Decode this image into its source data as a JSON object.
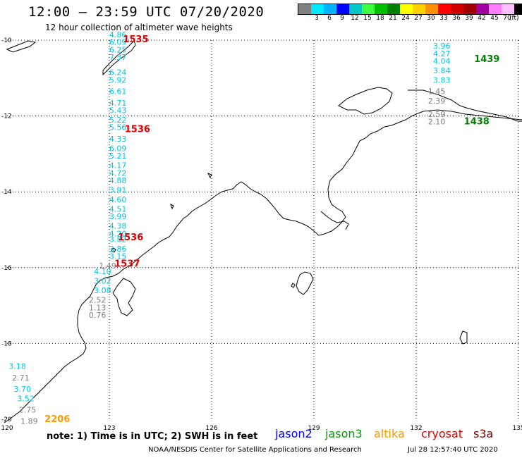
{
  "header": {
    "title": "12:00 – 23:59 UTC 07/20/2020",
    "subtitle": "12 hour collection of altimeter wave heights"
  },
  "legend": {
    "unit": "(ft)",
    "swatches": [
      {
        "color": "#808080",
        "label": ""
      },
      {
        "color": "#00e8ff",
        "label": "3"
      },
      {
        "color": "#00b4ff",
        "label": "6"
      },
      {
        "color": "#0000ff",
        "label": "9"
      },
      {
        "color": "#00c8c8",
        "label": "12"
      },
      {
        "color": "#40ff40",
        "label": "15"
      },
      {
        "color": "#00c000",
        "label": "18"
      },
      {
        "color": "#008000",
        "label": "21"
      },
      {
        "color": "#ffff00",
        "label": "24"
      },
      {
        "color": "#ffd000",
        "label": "27"
      },
      {
        "color": "#ff9000",
        "label": "30"
      },
      {
        "color": "#ff0000",
        "label": "33"
      },
      {
        "color": "#d00000",
        "label": "36"
      },
      {
        "color": "#a00000",
        "label": "39"
      },
      {
        "color": "#a000a0",
        "label": "42"
      },
      {
        "color": "#ff80ff",
        "label": "45"
      },
      {
        "color": "#ffc0ff",
        "label": "70"
      },
      {
        "color": "#000000",
        "label": ""
      }
    ]
  },
  "axes": {
    "lat_labels": [
      "-10",
      "-12",
      "-14",
      "-16",
      "-18",
      "-20"
    ],
    "lon_labels": [
      "120",
      "123",
      "126",
      "129",
      "132",
      "135"
    ]
  },
  "colors": {
    "cyan": "#00c8e0",
    "gray": "#808080",
    "red": "#e00000",
    "green": "#008000",
    "orange": "#ff9900"
  },
  "tracks": [
    {
      "name": "jason2-west",
      "color": "cyan",
      "lon": 123.25,
      "values": [
        {
          "lat": -9.85,
          "v": "4.86"
        },
        {
          "lat": -10.05,
          "v": "6.09"
        },
        {
          "lat": -10.25,
          "v": "6.25"
        },
        {
          "lat": -10.45,
          "v": "7.37"
        },
        {
          "lat": -10.85,
          "v": "6.24"
        },
        {
          "lat": -11.05,
          "v": "5.92"
        },
        {
          "lat": -11.35,
          "v": "6.61"
        },
        {
          "lat": -11.65,
          "v": "4.71"
        },
        {
          "lat": -11.85,
          "v": "5.43"
        },
        {
          "lat": -12.1,
          "v": "5.22"
        },
        {
          "lat": -12.3,
          "v": "5.56"
        },
        {
          "lat": -12.6,
          "v": "4.33"
        },
        {
          "lat": -12.85,
          "v": "6.09"
        },
        {
          "lat": -13.05,
          "v": "5.21"
        },
        {
          "lat": -13.3,
          "v": "4.17"
        },
        {
          "lat": -13.5,
          "v": "4.72"
        },
        {
          "lat": -13.7,
          "v": "4.88"
        },
        {
          "lat": -13.95,
          "v": "3.91"
        },
        {
          "lat": -14.2,
          "v": "4.60"
        },
        {
          "lat": -14.45,
          "v": "4.51"
        },
        {
          "lat": -14.65,
          "v": "3.99"
        },
        {
          "lat": -14.9,
          "v": "4.38"
        },
        {
          "lat": -15.1,
          "v": "4.20"
        },
        {
          "lat": -15.25,
          "v": "3.82"
        },
        {
          "lat": -15.5,
          "v": "3.86"
        },
        {
          "lat": -15.7,
          "v": "3.15"
        }
      ]
    },
    {
      "name": "jason2-west-low",
      "color": "gray",
      "lon": 122.95,
      "values": [
        {
          "lat": -15.95,
          "v": "1.49"
        }
      ]
    },
    {
      "name": "jason2-west-south",
      "color": "cyan",
      "lon": 122.8,
      "values": [
        {
          "lat": -16.1,
          "v": "4.10"
        },
        {
          "lat": -16.35,
          "v": "3.02"
        },
        {
          "lat": -16.6,
          "v": "3.08"
        }
      ]
    },
    {
      "name": "jason2-west-gray",
      "color": "gray",
      "lon": 122.65,
      "values": [
        {
          "lat": -16.85,
          "v": "2.52"
        },
        {
          "lat": -17.05,
          "v": "1.13"
        },
        {
          "lat": -17.25,
          "v": "0.76"
        }
      ]
    },
    {
      "name": "southwest-mixed",
      "color": "mixed",
      "values": [
        {
          "lon": 120.3,
          "lat": -18.6,
          "v": "3.18",
          "c": "cyan"
        },
        {
          "lon": 120.4,
          "lat": -18.9,
          "v": "2.71",
          "c": "gray"
        },
        {
          "lon": 120.45,
          "lat": -19.2,
          "v": "3.70",
          "c": "cyan"
        },
        {
          "lon": 120.55,
          "lat": -19.45,
          "v": "3.52",
          "c": "cyan"
        },
        {
          "lon": 120.6,
          "lat": -19.75,
          "v": "2.75",
          "c": "gray"
        },
        {
          "lon": 120.65,
          "lat": -20.05,
          "v": "1.89",
          "c": "gray"
        }
      ]
    },
    {
      "name": "east-cyan",
      "color": "cyan",
      "lon": 132.75,
      "values": [
        {
          "lat": -10.15,
          "v": "3.96"
        },
        {
          "lat": -10.35,
          "v": "4.27"
        },
        {
          "lat": -10.55,
          "v": "4.04"
        },
        {
          "lat": -10.8,
          "v": "3.84"
        },
        {
          "lat": -11.05,
          "v": "3.83"
        }
      ]
    },
    {
      "name": "east-gray",
      "color": "gray",
      "lon": 132.6,
      "values": [
        {
          "lat": -11.35,
          "v": "1.45"
        },
        {
          "lat": -11.6,
          "v": "2.39"
        },
        {
          "lat": -11.95,
          "v": "2.59"
        },
        {
          "lat": -12.15,
          "v": "2.10"
        }
      ]
    }
  ],
  "time_labels": [
    {
      "lon": 123.4,
      "lat": -9.98,
      "t": "1535",
      "c": "red"
    },
    {
      "lon": 123.45,
      "lat": -12.35,
      "t": "1536",
      "c": "red"
    },
    {
      "lon": 123.25,
      "lat": -15.2,
      "t": "1536",
      "c": "red"
    },
    {
      "lon": 123.15,
      "lat": -15.9,
      "t": "1537",
      "c": "red"
    },
    {
      "lon": 133.7,
      "lat": -10.5,
      "t": "1439",
      "c": "green"
    },
    {
      "lon": 133.4,
      "lat": -12.15,
      "t": "1438",
      "c": "green"
    },
    {
      "lon": 121.1,
      "lat": -20.0,
      "t": "2206",
      "c": "orange"
    }
  ],
  "footer": {
    "note": "note:  1) Time is in UTC;  2) SWH is in feet",
    "missions": [
      {
        "name": "jason2",
        "color": "#0000ff"
      },
      {
        "name": "jason3",
        "color": "#00a000"
      },
      {
        "name": "altika",
        "color": "#ff9900"
      },
      {
        "name": "cryosat",
        "color": "#e00000"
      },
      {
        "name": "s3a",
        "color": "#800000"
      }
    ],
    "credit": "NOAA/NESDIS Center for Satellite Applications and Research",
    "timestamp": "Jul 28 12:57:40 UTC 2020"
  }
}
